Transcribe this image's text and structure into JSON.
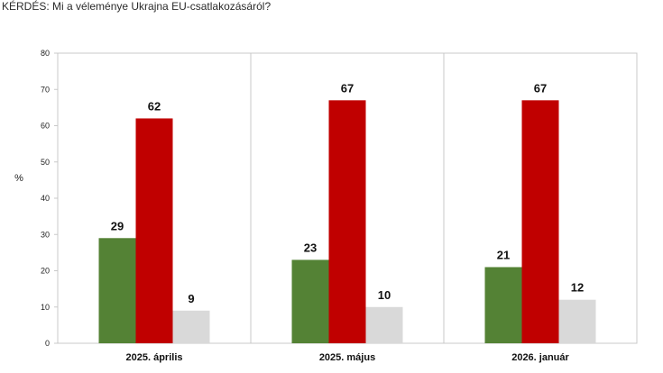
{
  "question": "KÉRDÉS: Mi a véleménye Ukrajna EU-csatlakozásáról?",
  "chart_data": {
    "type": "bar",
    "title": "",
    "xlabel": "",
    "ylabel": "%",
    "ylim": [
      0,
      80
    ],
    "yticks": [
      0,
      10,
      20,
      30,
      40,
      50,
      60,
      70,
      80
    ],
    "categories": [
      "2025. április",
      "2025. május",
      "2026. január"
    ],
    "series": [
      {
        "color": "#548235",
        "values": [
          29,
          23,
          21
        ]
      },
      {
        "color": "#c00000",
        "values": [
          62,
          67,
          67
        ]
      },
      {
        "color": "#d9d9d9",
        "values": [
          9,
          10,
          12
        ]
      }
    ],
    "grid": false,
    "legend": "none"
  }
}
